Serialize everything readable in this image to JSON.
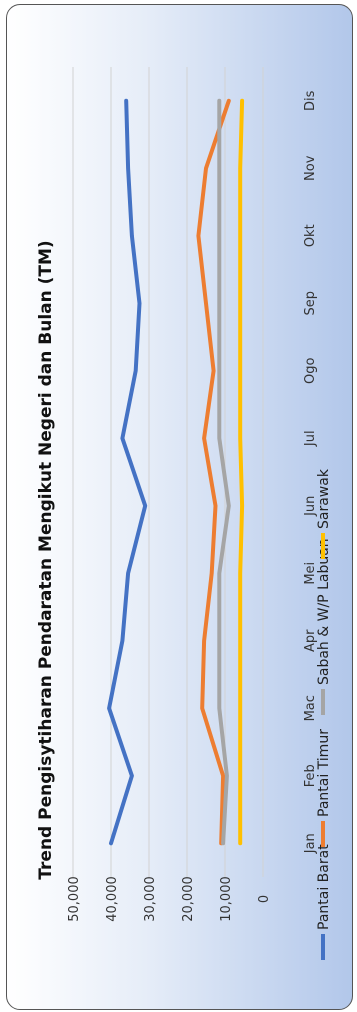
{
  "chart_data": {
    "type": "line",
    "title": "Trend Pengisytiharan Pendaratan Mengikut Negeri dan Bulan (TM)",
    "categories": [
      "Jan",
      "Feb",
      "Mac",
      "Apr",
      "Mei",
      "Jun",
      "Jul",
      "Ogo",
      "Sep",
      "Okt",
      "Nov",
      "Dis"
    ],
    "ylim": [
      0,
      50000
    ],
    "yticks": [
      0,
      10000,
      20000,
      30000,
      40000,
      50000
    ],
    "ytick_labels": [
      "0",
      "10,000",
      "20,000",
      "30,000",
      "40,000",
      "50,000"
    ],
    "grid": true,
    "legend_position": "bottom",
    "series": [
      {
        "name": "Pantai Barat",
        "color": "#4472c4",
        "values": [
          40000,
          34500,
          40500,
          37000,
          35500,
          31000,
          37000,
          33500,
          32500,
          34500,
          35500,
          36000
        ]
      },
      {
        "name": "Pantai Timur",
        "color": "#ed7d31",
        "values": [
          11000,
          10500,
          16000,
          15500,
          13500,
          12500,
          15500,
          13000,
          15000,
          17000,
          15000,
          9000
        ]
      },
      {
        "name": "Sabah & W/P Labuan",
        "color": "#a5a5a5",
        "values": [
          10500,
          9500,
          11500,
          11500,
          11500,
          9000,
          11500,
          11500,
          11500,
          11500,
          11500,
          11500
        ]
      },
      {
        "name": "Sarawak",
        "color": "#ffc000",
        "values": [
          6000,
          6000,
          6000,
          6000,
          6000,
          5500,
          6000,
          6000,
          6000,
          6000,
          6000,
          5500
        ]
      }
    ]
  }
}
